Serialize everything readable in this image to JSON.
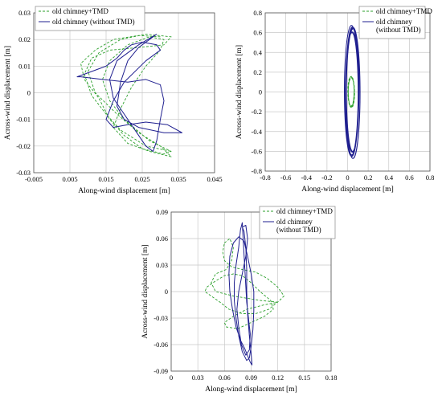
{
  "chart_data": [
    {
      "type": "line",
      "xlabel": "Along-wind displacement [m]",
      "ylabel": "Across-wind displacement [m]",
      "xlim": [
        -0.005,
        0.045
      ],
      "ylim": [
        -0.03,
        0.03
      ],
      "xticks": [
        "-0.005",
        "0.005",
        "0.015",
        "0.025",
        "0.035",
        "0.045"
      ],
      "yticks": [
        "0.03",
        "0.02",
        "0.01",
        "0",
        "-0.01",
        "-0.02",
        "-0.03"
      ],
      "grid": true,
      "legend_position": "top-left",
      "series": [
        {
          "name": "old chimney+TMD",
          "color": "#2ca02c",
          "dash": "dashed",
          "points": [
            [
              0.03,
              0.021
            ],
            [
              0.024,
              0.0215
            ],
            [
              0.017,
              0.02
            ],
            [
              0.012,
              0.016
            ],
            [
              0.008,
              0.011
            ],
            [
              0.009,
              0.005
            ],
            [
              0.013,
              -0.002
            ],
            [
              0.016,
              -0.01
            ],
            [
              0.02,
              -0.016
            ],
            [
              0.025,
              -0.021
            ],
            [
              0.031,
              -0.023
            ],
            [
              0.033,
              -0.022
            ],
            [
              0.027,
              -0.018
            ],
            [
              0.02,
              -0.01
            ],
            [
              0.016,
              -0.003
            ],
            [
              0.014,
              0.005
            ],
            [
              0.016,
              0.012
            ],
            [
              0.021,
              0.018
            ],
            [
              0.027,
              0.021
            ],
            [
              0.031,
              0.02
            ],
            [
              0.03,
              0.016
            ],
            [
              0.026,
              0.01
            ],
            [
              0.022,
              0.002
            ],
            [
              0.019,
              -0.006
            ],
            [
              0.017,
              -0.013
            ],
            [
              0.021,
              -0.019
            ],
            [
              0.027,
              -0.022
            ],
            [
              0.033,
              -0.024
            ],
            [
              0.03,
              -0.02
            ],
            [
              0.024,
              -0.015
            ],
            [
              0.018,
              -0.008
            ],
            [
              0.012,
              0.0
            ],
            [
              0.01,
              0.008
            ],
            [
              0.013,
              0.015
            ],
            [
              0.019,
              0.02
            ],
            [
              0.026,
              0.022
            ],
            [
              0.033,
              0.021
            ],
            [
              0.031,
              0.018
            ],
            [
              0.024,
              0.017
            ],
            [
              0.016,
              0.016
            ],
            [
              0.011,
              0.013
            ],
            [
              0.009,
              0.007
            ],
            [
              0.011,
              -0.001
            ],
            [
              0.015,
              -0.008
            ],
            [
              0.019,
              -0.014
            ],
            [
              0.026,
              -0.02
            ],
            [
              0.033,
              -0.022
            ]
          ]
        },
        {
          "name": "old chimney (without TMD)",
          "color": "#1f1f8f",
          "dash": "solid",
          "points": [
            [
              0.029,
              0.022
            ],
            [
              0.024,
              0.018
            ],
            [
              0.018,
              0.012
            ],
            [
              0.016,
              0.005
            ],
            [
              0.017,
              -0.002
            ],
            [
              0.02,
              -0.008
            ],
            [
              0.023,
              -0.014
            ],
            [
              0.026,
              -0.02
            ],
            [
              0.028,
              -0.022
            ],
            [
              0.029,
              -0.018
            ],
            [
              0.03,
              -0.01
            ],
            [
              0.031,
              -0.003
            ],
            [
              0.03,
              0.003
            ],
            [
              0.026,
              0.005
            ],
            [
              0.021,
              0.004
            ],
            [
              0.014,
              0.005
            ],
            [
              0.008,
              0.006
            ],
            [
              0.007,
              0.006
            ],
            [
              0.011,
              0.008
            ],
            [
              0.015,
              0.01
            ],
            [
              0.018,
              0.013
            ],
            [
              0.02,
              0.016
            ],
            [
              0.022,
              0.018
            ],
            [
              0.025,
              0.019
            ],
            [
              0.029,
              0.018
            ],
            [
              0.03,
              0.016
            ],
            [
              0.026,
              0.012
            ],
            [
              0.02,
              0.004
            ],
            [
              0.017,
              -0.003
            ],
            [
              0.015,
              -0.01
            ],
            [
              0.017,
              -0.013
            ],
            [
              0.021,
              -0.012
            ],
            [
              0.026,
              -0.011
            ],
            [
              0.032,
              -0.012
            ],
            [
              0.036,
              -0.015
            ],
            [
              0.031,
              -0.015
            ],
            [
              0.024,
              -0.013
            ],
            [
              0.02,
              -0.01
            ],
            [
              0.018,
              -0.005
            ],
            [
              0.019,
              0.004
            ],
            [
              0.021,
              0.012
            ],
            [
              0.024,
              0.017
            ],
            [
              0.027,
              0.02
            ],
            [
              0.029,
              0.022
            ]
          ]
        }
      ]
    },
    {
      "type": "line",
      "xlabel": "Along-wind displacement [m]",
      "ylabel": "Across-wind displacement [m]",
      "xlim": [
        -0.8,
        0.8
      ],
      "ylim": [
        -0.8,
        0.8
      ],
      "xticks": [
        "-0.8",
        "-0.6",
        "-0.4",
        "-0.2",
        "0",
        "0.2",
        "0.4",
        "0.6",
        "0.8"
      ],
      "yticks": [
        "0.8",
        "0.6",
        "0.4",
        "0.2",
        "0",
        "-0.2",
        "-0.4",
        "-0.6",
        "-0.8"
      ],
      "grid": true,
      "legend_position": "top-right",
      "series": [
        {
          "name": "old chimney+TMD",
          "color": "#2ca02c",
          "dash": "dashed",
          "center": [
            0.035,
            0.0
          ],
          "radius": [
            0.03,
            0.15
          ],
          "loops": 5
        },
        {
          "name": "old chimney\n(without TMD)",
          "color": "#1f1f8f",
          "dash": "solid",
          "center": [
            0.045,
            0.0
          ],
          "radius": [
            0.065,
            0.635
          ],
          "loops": 8
        }
      ]
    },
    {
      "type": "line",
      "xlabel": "Along-wind displacement [m]",
      "ylabel": "Across-wind displacement [m]",
      "xlim": [
        0,
        0.18
      ],
      "ylim": [
        -0.09,
        0.09
      ],
      "xticks": [
        "0",
        "0.03",
        "0.06",
        "0.09",
        "0.12",
        "0.15",
        "0.18"
      ],
      "yticks": [
        "0.09",
        "0.06",
        "0.03",
        "0",
        "-0.03",
        "-0.06",
        "-0.09"
      ],
      "grid": true,
      "legend_position": "top-right",
      "series": [
        {
          "name": "old chimney+TMD",
          "color": "#2ca02c",
          "dash": "dashed",
          "points": [
            [
              0.06,
              0.055
            ],
            [
              0.066,
              0.06
            ],
            [
              0.07,
              0.05
            ],
            [
              0.068,
              0.035
            ],
            [
              0.062,
              0.025
            ],
            [
              0.05,
              0.02
            ],
            [
              0.045,
              0.01
            ],
            [
              0.05,
              0.0
            ],
            [
              0.07,
              -0.005
            ],
            [
              0.1,
              -0.01
            ],
            [
              0.12,
              -0.012
            ],
            [
              0.105,
              -0.015
            ],
            [
              0.085,
              -0.02
            ],
            [
              0.07,
              -0.028
            ],
            [
              0.06,
              -0.035
            ],
            [
              0.062,
              -0.04
            ],
            [
              0.075,
              -0.042
            ],
            [
              0.09,
              -0.035
            ],
            [
              0.105,
              -0.028
            ],
            [
              0.115,
              -0.02
            ],
            [
              0.112,
              -0.01
            ],
            [
              0.1,
              0.0
            ],
            [
              0.09,
              0.01
            ],
            [
              0.08,
              0.018
            ],
            [
              0.07,
              0.02
            ],
            [
              0.06,
              0.018
            ],
            [
              0.05,
              0.012
            ],
            [
              0.04,
              0.005
            ],
            [
              0.038,
              0.0
            ],
            [
              0.045,
              -0.005
            ],
            [
              0.055,
              -0.012
            ],
            [
              0.065,
              -0.02
            ],
            [
              0.08,
              -0.025
            ],
            [
              0.095,
              -0.025
            ],
            [
              0.11,
              -0.02
            ],
            [
              0.122,
              -0.01
            ],
            [
              0.127,
              -0.005
            ],
            [
              0.12,
              0.005
            ],
            [
              0.108,
              0.015
            ],
            [
              0.095,
              0.022
            ],
            [
              0.08,
              0.025
            ],
            [
              0.068,
              0.028
            ],
            [
              0.06,
              0.035
            ],
            [
              0.058,
              0.045
            ],
            [
              0.06,
              0.055
            ]
          ]
        },
        {
          "name": "old chimney\n(without TMD)",
          "color": "#1f1f8f",
          "dash": "solid",
          "points": [
            [
              0.08,
              0.073
            ],
            [
              0.084,
              0.075
            ],
            [
              0.086,
              0.06
            ],
            [
              0.084,
              0.04
            ],
            [
              0.08,
              0.02
            ],
            [
              0.076,
              0.0
            ],
            [
              0.074,
              -0.02
            ],
            [
              0.076,
              -0.04
            ],
            [
              0.079,
              -0.06
            ],
            [
              0.084,
              -0.072
            ],
            [
              0.088,
              -0.066
            ],
            [
              0.089,
              -0.048
            ],
            [
              0.087,
              -0.03
            ],
            [
              0.085,
              -0.012
            ],
            [
              0.084,
              0.006
            ],
            [
              0.083,
              0.024
            ],
            [
              0.082,
              0.042
            ],
            [
              0.081,
              0.06
            ],
            [
              0.08,
              0.078
            ],
            [
              0.078,
              0.07
            ],
            [
              0.076,
              0.05
            ],
            [
              0.073,
              0.03
            ],
            [
              0.071,
              0.01
            ],
            [
              0.071,
              -0.01
            ],
            [
              0.073,
              -0.03
            ],
            [
              0.076,
              -0.05
            ],
            [
              0.08,
              -0.068
            ],
            [
              0.085,
              -0.078
            ],
            [
              0.088,
              -0.075
            ],
            [
              0.09,
              -0.062
            ],
            [
              0.092,
              -0.043
            ],
            [
              0.093,
              -0.022
            ],
            [
              0.093,
              0.0
            ],
            [
              0.09,
              0.02
            ],
            [
              0.086,
              0.04
            ],
            [
              0.082,
              0.057
            ],
            [
              0.076,
              0.062
            ],
            [
              0.07,
              0.055
            ],
            [
              0.066,
              0.04
            ],
            [
              0.065,
              0.02
            ],
            [
              0.066,
              0.0
            ],
            [
              0.069,
              -0.02
            ],
            [
              0.073,
              -0.04
            ],
            [
              0.078,
              -0.055
            ],
            [
              0.083,
              -0.065
            ],
            [
              0.089,
              -0.08
            ],
            [
              0.091,
              -0.083
            ],
            [
              0.09,
              -0.07
            ],
            [
              0.088,
              -0.05
            ],
            [
              0.086,
              -0.025
            ],
            [
              0.085,
              0.0
            ],
            [
              0.085,
              0.025
            ],
            [
              0.084,
              0.05
            ],
            [
              0.082,
              0.068
            ],
            [
              0.08,
              0.073
            ]
          ]
        }
      ]
    }
  ]
}
